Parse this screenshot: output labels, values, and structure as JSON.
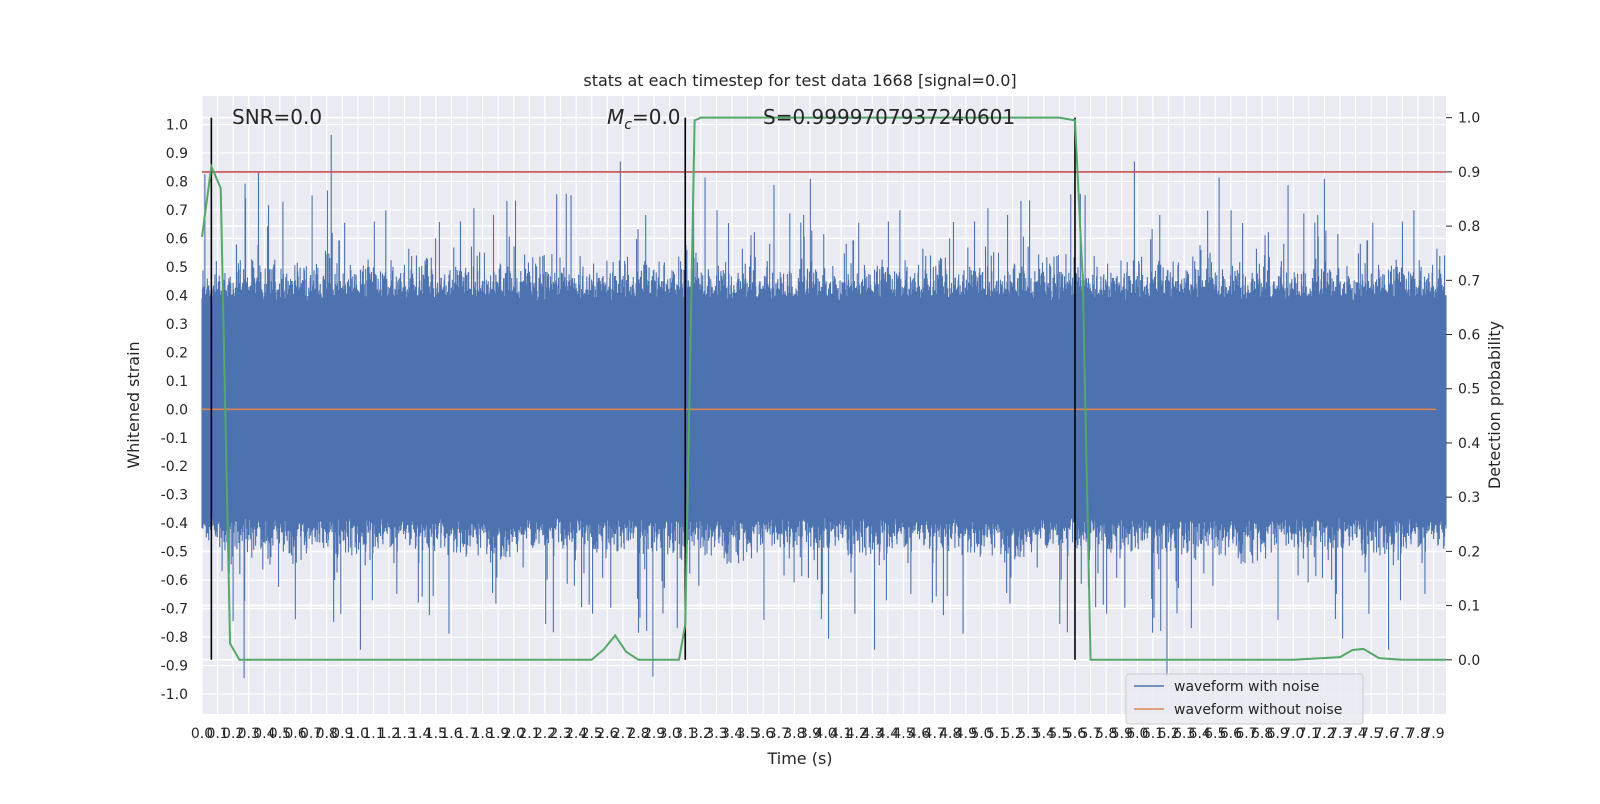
{
  "chart_data": {
    "type": "line",
    "title": "stats at each timestep for test data 1668 [signal=0.0]",
    "xlabel": "Time (s)",
    "ylabel_left": "Whitened strain",
    "ylabel_right": "Detection probability",
    "xlim": [
      0.0,
      7.98
    ],
    "ylim_left": [
      -1.07,
      1.1
    ],
    "ylim_right": [
      -0.1,
      1.04
    ],
    "x_tick_step": 0.1,
    "y_left_ticks": [
      1.0,
      0.9,
      0.8,
      0.7,
      0.6,
      0.5,
      0.4,
      0.3,
      0.2,
      0.1,
      0.0,
      -0.1,
      -0.2,
      -0.3,
      -0.4,
      -0.5,
      -0.6,
      -0.7,
      -0.8,
      -0.9,
      -1.0
    ],
    "y_left_tick_labels": [
      "1.0",
      "0.9",
      "0.8",
      "0.7",
      "0.6",
      "0.5",
      "0.4",
      "0.3",
      "0.2",
      "0.1",
      "0.0",
      "-0.1",
      "-0.2",
      "-0.3",
      "-0.4",
      "-0.5",
      "-0.6",
      "-0.7",
      "-0.8",
      "-0.9",
      "-1.0"
    ],
    "y_right_ticks": [
      1.0,
      0.9,
      0.8,
      0.7,
      0.6,
      0.5,
      0.4,
      0.3,
      0.2,
      0.1,
      0.0
    ],
    "y_right_tick_labels": [
      "1.0",
      "0.9",
      "0.8",
      "0.7",
      "0.6",
      "0.5",
      "0.4",
      "0.3",
      "0.2",
      "0.1",
      "0.0"
    ],
    "grid": true,
    "annotations": [
      {
        "label": "SNR=0.0"
      },
      {
        "label_italic": "M",
        "label_sub": "c",
        "label": "=0.0"
      },
      {
        "label": "S=0.9999707937240601"
      }
    ],
    "vertical_markers_x": [
      0.06,
      3.1,
      5.6
    ],
    "threshold_line": {
      "y_right": 0.9,
      "color": "#c44e52"
    },
    "series": [
      {
        "name": "waveform with noise",
        "color": "#4c72b0",
        "axis": "left",
        "note_sampling": "dense noise; drawn as vertical samples",
        "envelope_core": 0.38,
        "spike_max": 1.0
      },
      {
        "name": "waveform without noise",
        "color": "#dd8452",
        "axis": "left",
        "constant_y": 0.0
      },
      {
        "color": "#55a868",
        "axis": "right",
        "x": [
          0.0,
          0.06,
          0.12,
          0.18,
          0.24,
          0.5,
          1.0,
          1.5,
          2.0,
          2.4,
          2.5,
          2.58,
          2.65,
          2.72,
          2.8,
          3.0,
          3.06,
          3.1,
          3.16,
          3.2,
          3.5,
          4.0,
          4.5,
          5.0,
          5.5,
          5.6,
          5.65,
          5.7,
          5.75,
          6.0,
          6.5,
          7.0,
          7.3,
          7.38,
          7.45,
          7.55,
          7.7,
          7.98
        ],
        "y": [
          0.78,
          0.91,
          0.87,
          0.03,
          0.0,
          0.0,
          0.0,
          0.0,
          0.0,
          0.0,
          0.0,
          0.02,
          0.045,
          0.015,
          0.0,
          0.0,
          0.0,
          0.065,
          0.995,
          1.0,
          1.0,
          1.0,
          1.0,
          1.0,
          1.0,
          0.995,
          0.7,
          0.0,
          0.0,
          0.0,
          0.0,
          0.0,
          0.005,
          0.018,
          0.02,
          0.003,
          0.0,
          0.0
        ]
      }
    ],
    "legend": {
      "position": "bottom-right"
    }
  }
}
